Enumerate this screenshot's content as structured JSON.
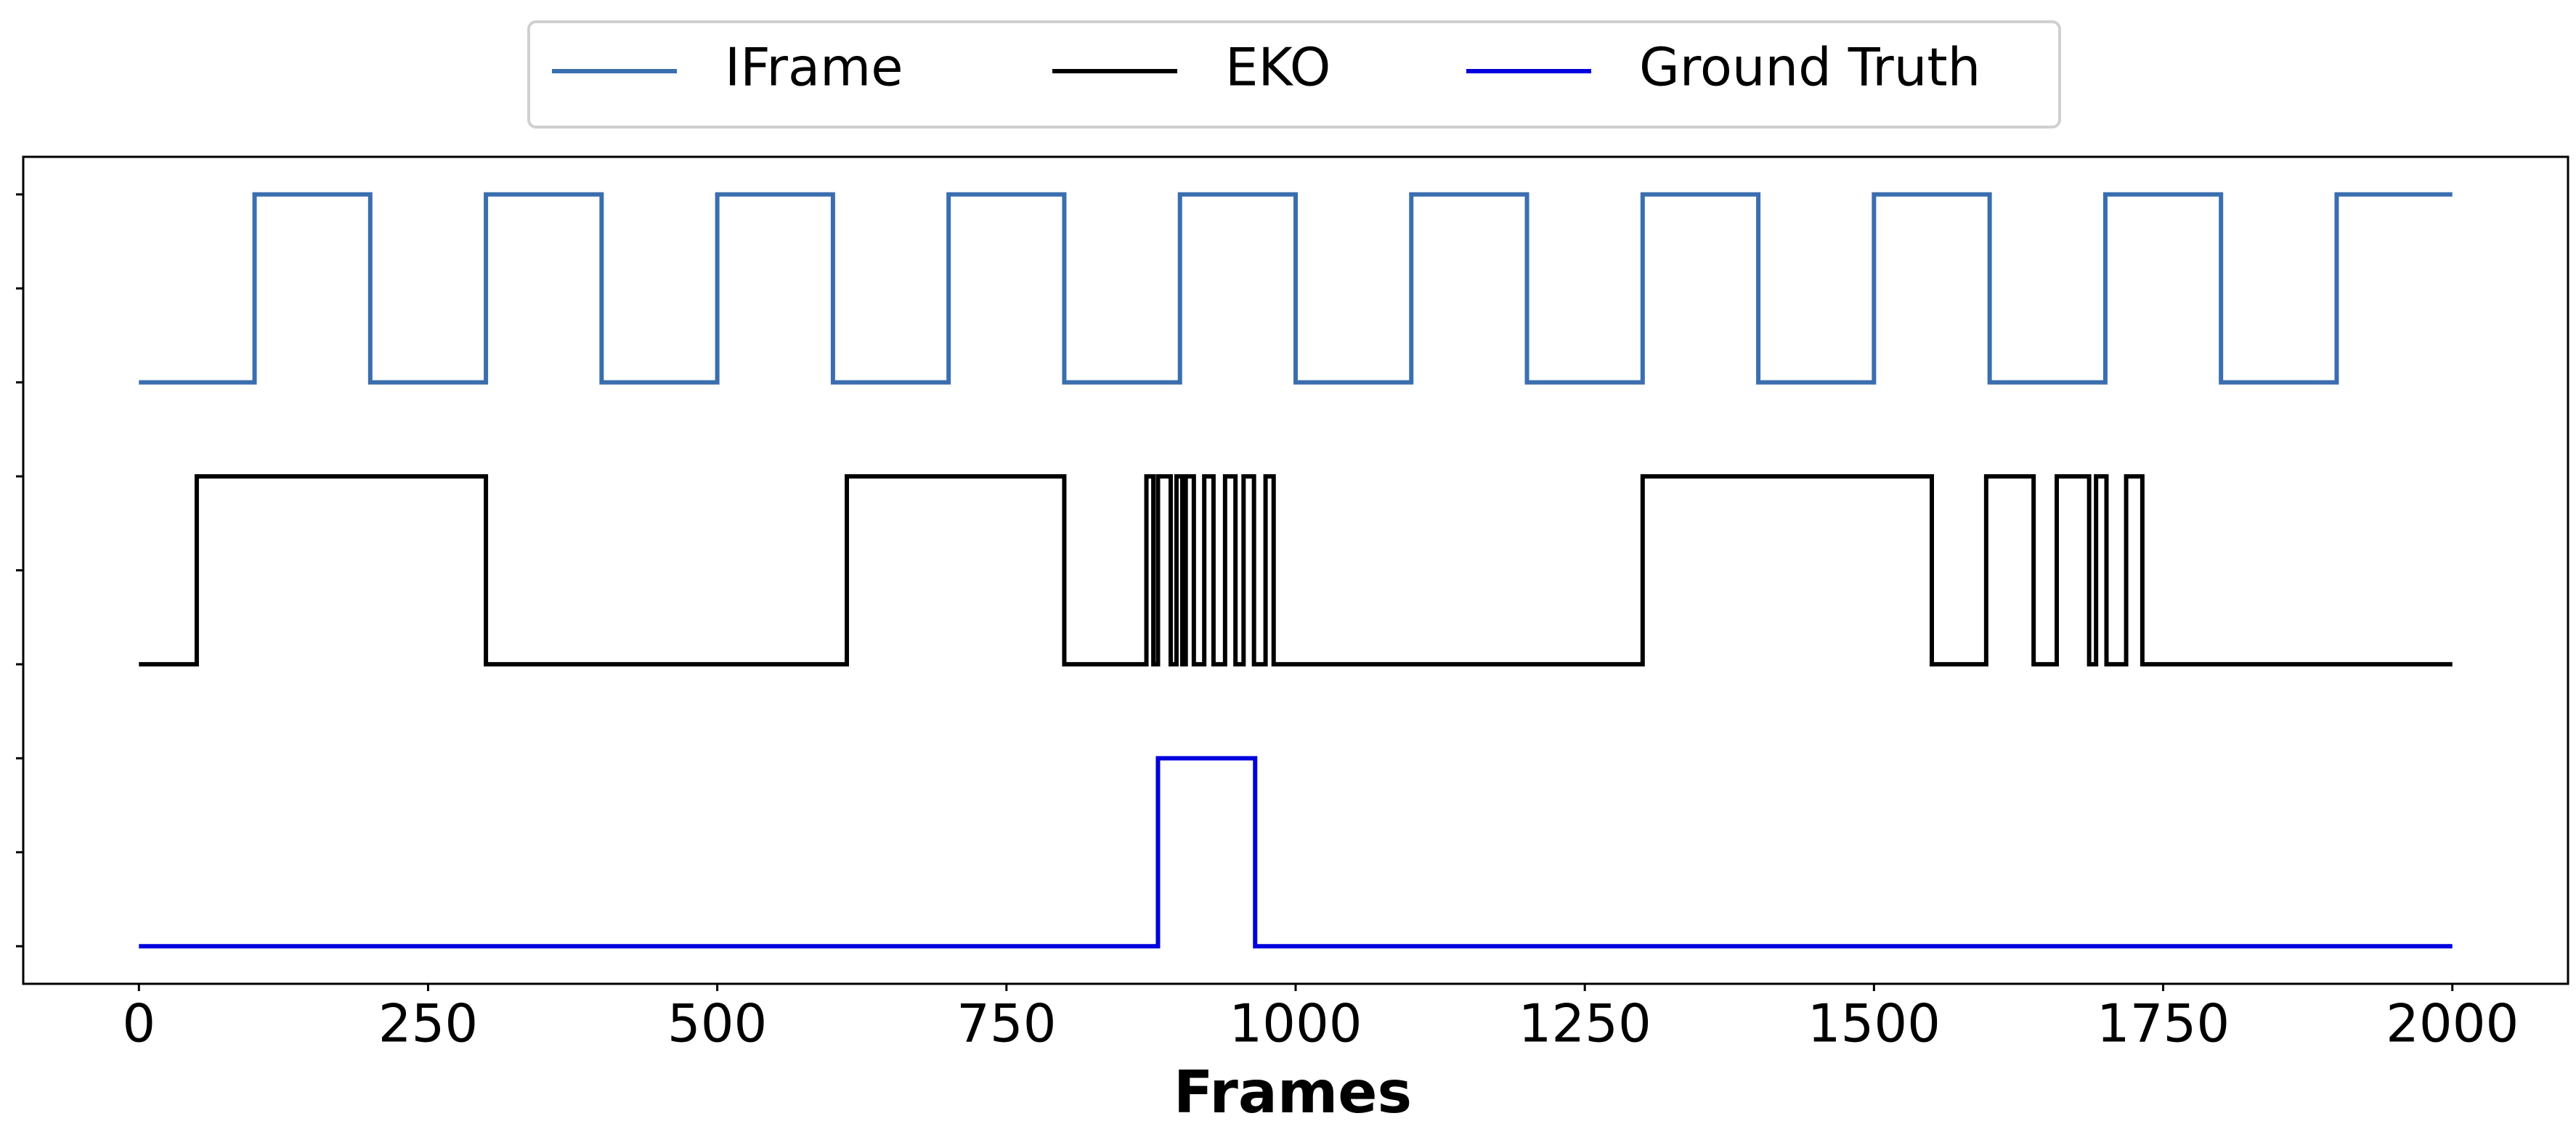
{
  "chart_data": {
    "type": "line",
    "xlabel": "Frames",
    "xlim": [
      -100,
      2100
    ],
    "xticks": [
      0,
      250,
      500,
      750,
      1000,
      1250,
      1500,
      1750,
      2000
    ],
    "ylim": [
      -0.4,
      8.4
    ],
    "yticks": [
      0,
      1,
      2,
      3,
      4,
      5,
      6,
      7,
      8
    ],
    "grid": false,
    "legend": "top",
    "series": [
      {
        "name": "IFrame",
        "color": "#3a6eaf",
        "x": [
          0,
          100,
          100,
          200,
          200,
          300,
          300,
          400,
          400,
          500,
          500,
          600,
          600,
          700,
          700,
          800,
          800,
          900,
          900,
          1000,
          1000,
          1100,
          1100,
          1200,
          1200,
          1300,
          1300,
          1400,
          1400,
          1500,
          1500,
          1600,
          1600,
          1700,
          1700,
          1800,
          1800,
          1900,
          1900,
          2000
        ],
        "values": [
          6,
          6,
          8,
          8,
          6,
          6,
          8,
          8,
          6,
          6,
          8,
          8,
          6,
          6,
          8,
          8,
          6,
          6,
          8,
          8,
          6,
          6,
          8,
          8,
          6,
          6,
          8,
          8,
          6,
          6,
          8,
          8,
          6,
          6,
          8,
          8,
          6,
          6,
          8,
          8
        ]
      },
      {
        "name": "EKO",
        "color": "#000000",
        "x": [
          0,
          50,
          50,
          300,
          300,
          612,
          612,
          800,
          800,
          871,
          871,
          877,
          877,
          881,
          881,
          892,
          892,
          897,
          897,
          902,
          902,
          905,
          905,
          912,
          912,
          921,
          921,
          929,
          929,
          939,
          939,
          948,
          948,
          955,
          955,
          964,
          964,
          974,
          974,
          981,
          981,
          1300,
          1300,
          1550,
          1550,
          1597,
          1597,
          1638,
          1638,
          1658,
          1658,
          1686,
          1686,
          1692,
          1692,
          1701,
          1701,
          1718,
          1718,
          1732,
          1732,
          2000
        ],
        "values": [
          3,
          3,
          5,
          5,
          3,
          3,
          5,
          5,
          3,
          3,
          5,
          5,
          3,
          3,
          5,
          5,
          3,
          3,
          5,
          5,
          3,
          3,
          5,
          5,
          3,
          3,
          5,
          5,
          3,
          3,
          5,
          5,
          3,
          3,
          5,
          5,
          3,
          3,
          5,
          5,
          3,
          3,
          5,
          5,
          3,
          3,
          5,
          5,
          3,
          3,
          5,
          5,
          3,
          3,
          5,
          5,
          3,
          3,
          5,
          5,
          3,
          3
        ]
      },
      {
        "name": "Ground Truth",
        "color": "#0000dd",
        "x": [
          0,
          881,
          881,
          965,
          965,
          2000
        ],
        "values": [
          0,
          0,
          2,
          2,
          0,
          0
        ]
      }
    ]
  }
}
